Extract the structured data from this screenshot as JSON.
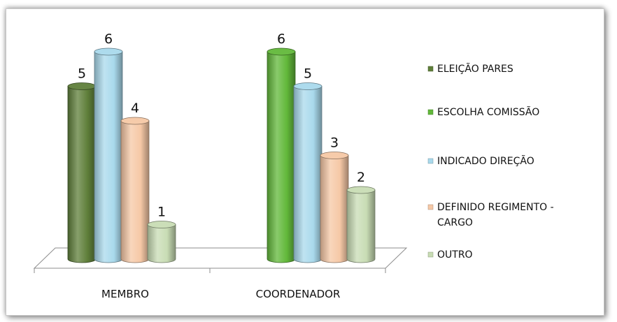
{
  "chart_data": {
    "type": "bar",
    "categories": [
      "MEMBRO",
      "COORDENADOR"
    ],
    "series": [
      {
        "name": "ELEIÇÃO PARES",
        "values": [
          5,
          null
        ],
        "color": "#5f7f3a"
      },
      {
        "name": "ESCOLHA COMISSÃO",
        "values": [
          null,
          6
        ],
        "color": "#62b83a"
      },
      {
        "name": "INDICADO DIREÇÃO",
        "values": [
          6,
          5
        ],
        "color": "#a9d9ec"
      },
      {
        "name": "DEFINIDO REGIMENTO - CARGO",
        "values": [
          4,
          3
        ],
        "color": "#f6c8a6"
      },
      {
        "name": "OUTRO",
        "values": [
          1,
          2
        ],
        "color": "#c8dcb4"
      }
    ],
    "legend_lines": [
      [
        "ELEIÇÃO PARES"
      ],
      [
        "ESCOLHA COMISSÃO"
      ],
      [
        "INDICADO DIREÇÃO"
      ],
      [
        "DEFINIDO REGIMENTO -",
        "CARGO"
      ],
      [
        "OUTRO"
      ]
    ],
    "ylim": [
      0,
      6
    ],
    "grid": false,
    "legend": "right",
    "data_labels": true,
    "style": "3d-cylinder"
  }
}
